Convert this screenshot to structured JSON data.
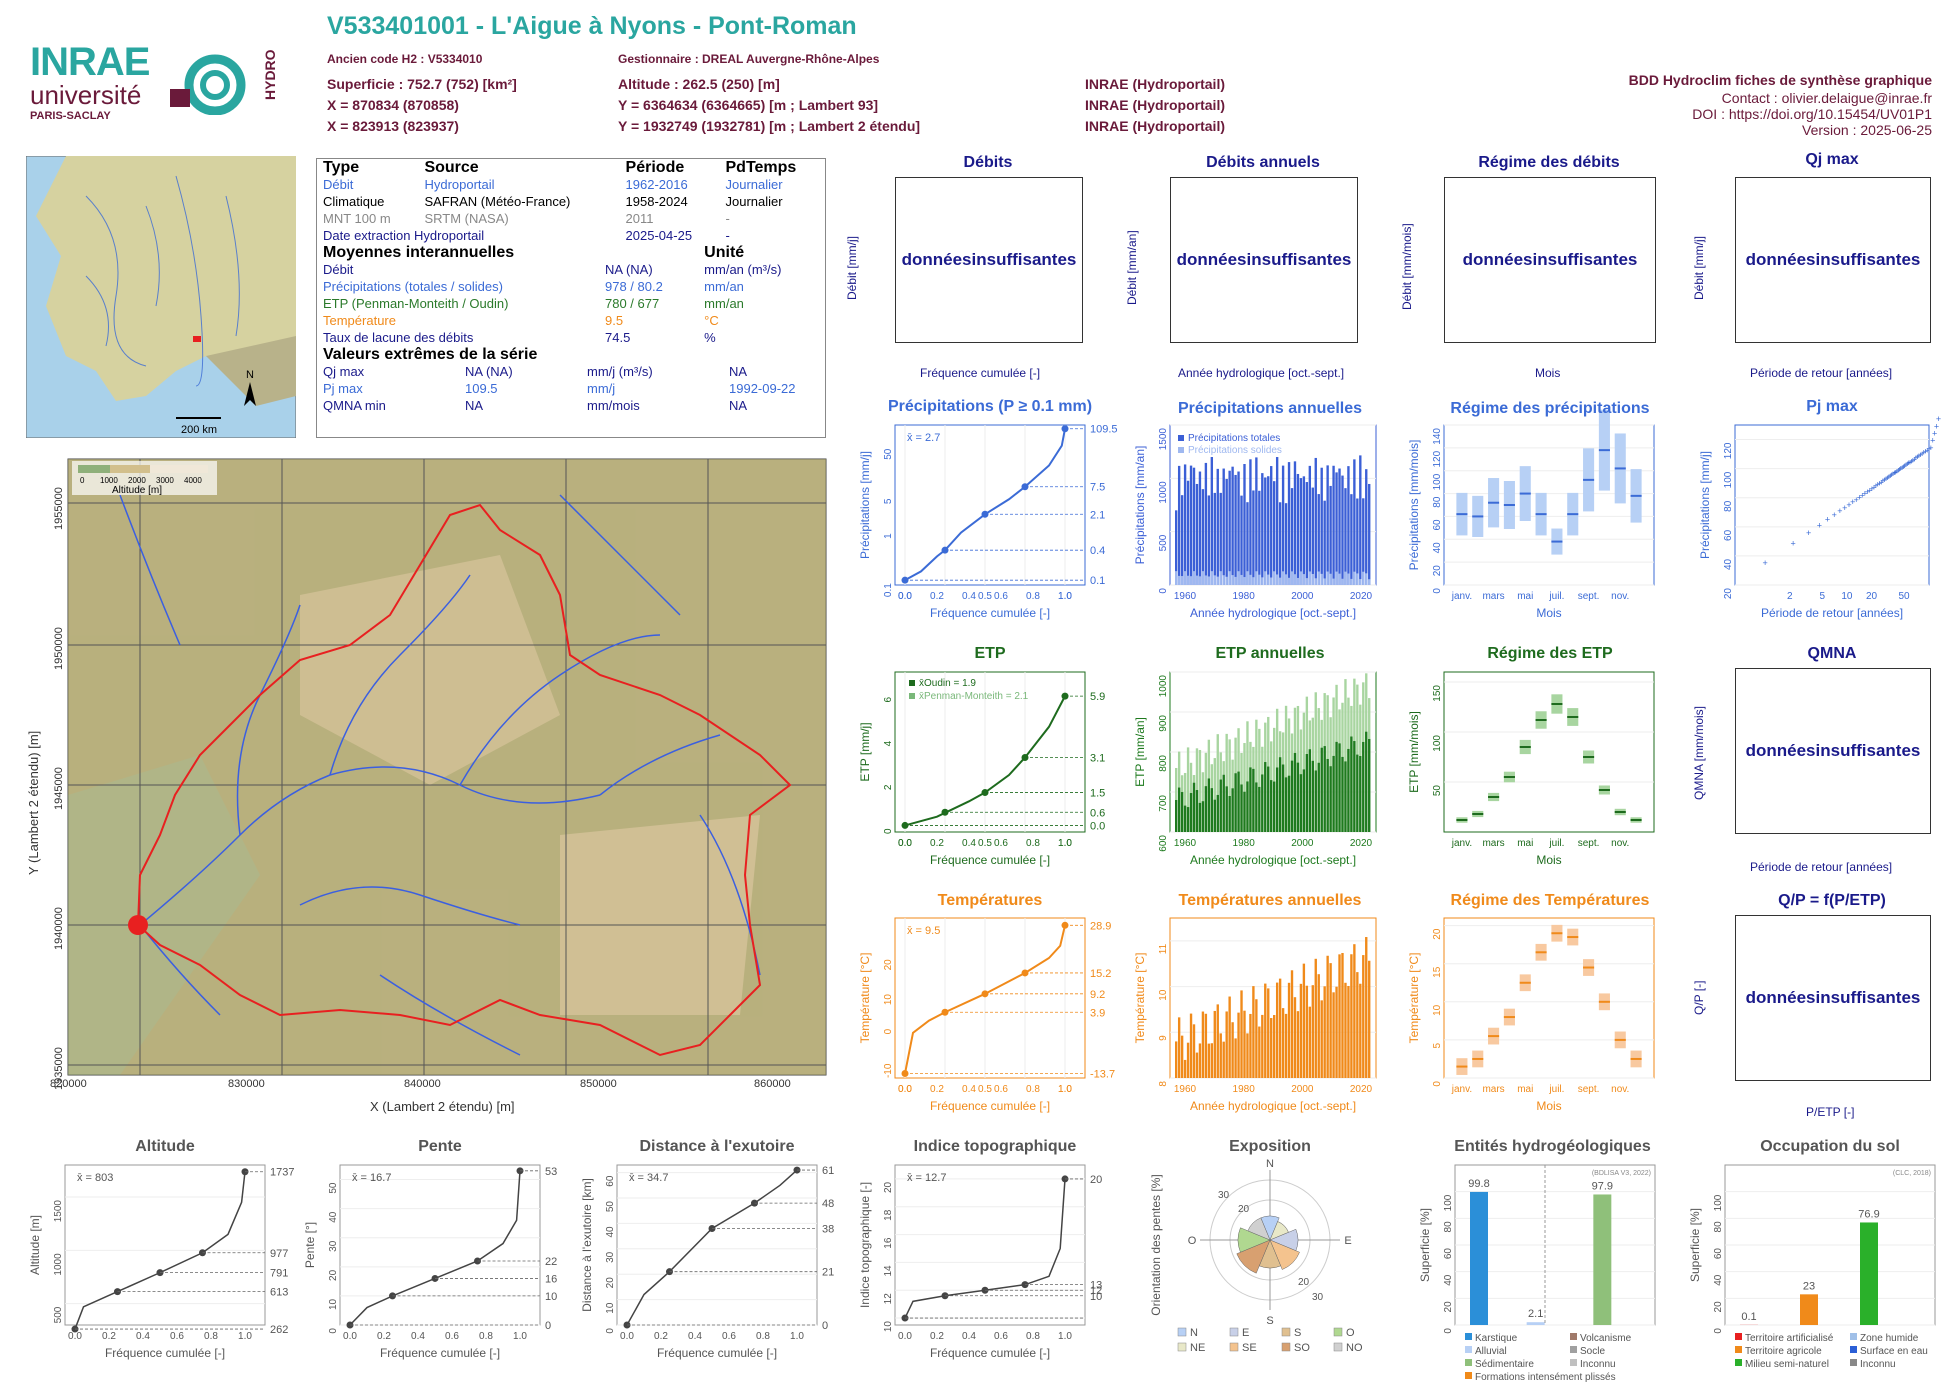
{
  "header": {
    "title": "V533401001 - L'Aigue à Nyons - Pont-Roman",
    "ancien_code": "Ancien code H2 : V5334010",
    "gestionnaire": "Gestionnaire : DREAL Auvergne-Rhône-Alpes",
    "superficie": "Superficie : 752.7 (752) [km²]",
    "altitude": "Altitude : 262.5 (250) [m]",
    "x93": "X = 870834 (870858)",
    "y93": "Y = 6364634 (6364665) [m ; Lambert 93]",
    "x2": "X = 823913 (823937)",
    "y2": "Y = 1932749 (1932781) [m ; Lambert 2 étendu]",
    "src1": "INRAE (Hydroportail)",
    "src2": "INRAE (Hydroportail)",
    "src3": "INRAE (Hydroportail)"
  },
  "logos": {
    "inrae": "INRAE",
    "univ": "université",
    "ps": "PARIS-SACLAY",
    "hydro": "HYDRO"
  },
  "meta": {
    "bdd": "BDD Hydroclim fiches de synthèse graphique",
    "contact": "Contact : olivier.delaigue@inrae.fr",
    "doi": "DOI : https://doi.org/10.15454/UV01P1",
    "version": "Version : 2025-06-25"
  },
  "info": {
    "cols": [
      "Type",
      "Source",
      "Période",
      "PdTemps"
    ],
    "rows": [
      [
        "Débit",
        "Hydroportail",
        "1962-2016",
        "Journalier"
      ],
      [
        "Climatique",
        "SAFRAN (Météo-France)",
        "1958-2024",
        "Journalier"
      ],
      [
        "MNT 100 m",
        "SRTM (NASA)",
        "2011",
        "-"
      ],
      [
        "Date extraction Hydroportail",
        "",
        "2025-04-25",
        "-"
      ]
    ],
    "moy_title": "Moyennes interannuelles",
    "unit_title": "Unité",
    "moy": [
      [
        "Débit",
        "NA (NA)",
        "mm/an (m³/s)"
      ],
      [
        "Précipitations (totales / solides)",
        "978 / 80.2",
        "mm/an"
      ],
      [
        "ETP (Penman-Monteith / Oudin)",
        "780 / 677",
        "mm/an"
      ],
      [
        "Température",
        "9.5",
        "°C"
      ],
      [
        "Taux de lacune des débits",
        "74.5",
        "%"
      ]
    ],
    "ext_title": "Valeurs extrêmes de la série",
    "ext": [
      [
        "Qj max",
        "NA (NA)",
        "mm/j (m³/s)",
        "NA"
      ],
      [
        "Pj max",
        "109.5",
        "mm/j",
        "1992-09-22"
      ],
      [
        "QMNA min",
        "NA",
        "mm/mois",
        "NA"
      ]
    ]
  },
  "minimap": {
    "scale": "200 km",
    "north": "N"
  },
  "map": {
    "xlabel": "X (Lambert 2 étendu) [m]",
    "ylabel": "Y (Lambert 2 étendu) [m]",
    "xticks": [
      "820000",
      "830000",
      "840000",
      "850000",
      "860000"
    ],
    "yticks": [
      "1955000",
      "1950000",
      "1945000",
      "1940000",
      "1935000",
      "1930000",
      "1925000"
    ],
    "legend_title": "Altitude [m]",
    "legend_ticks": [
      "0",
      "1000",
      "2000",
      "3000",
      "4000"
    ]
  },
  "placeholders": {
    "text1": "données",
    "text2": "insuffisantes"
  },
  "panels": {
    "debits": {
      "title": "Débits",
      "ylabel": "Débit [mm/j]",
      "xlabel": "Fréquence cumulée [-]"
    },
    "debits_an": {
      "title": "Débits annuels",
      "ylabel": "Débit [mm/an]",
      "xlabel": "Année hydrologique [oct.-sept.]"
    },
    "regime_deb": {
      "title": "Régime des débits",
      "ylabel": "Débit [mm/mois]",
      "xlabel": "Mois"
    },
    "qjmax": {
      "title": "Qj max",
      "ylabel": "Débit [mm/j]",
      "xlabel": "Période de retour [années]"
    },
    "precip": {
      "title": "Précipitations (P ≥ 0.1 mm)",
      "ylabel": "Précipitations [mm/j]",
      "xlabel": "Fréquence cumulée [-]",
      "mean": "x̄ = 2.7"
    },
    "precip_an": {
      "title": "Précipitations annuelles",
      "ylabel": "Précipitations [mm/an]",
      "xlabel": "Année hydrologique [oct.-sept.]",
      "leg1": "Précipitations totales",
      "leg2": "Précipitations solides"
    },
    "regime_p": {
      "title": "Régime des précipitations",
      "ylabel": "Précipitations [mm/mois]",
      "xlabel": "Mois"
    },
    "pjmax": {
      "title": "Pj max",
      "ylabel": "Précipitations [mm/j]",
      "xlabel": "Période de retour [années]"
    },
    "etp": {
      "title": "ETP",
      "ylabel": "ETP [mm/j]",
      "xlabel": "Fréquence cumulée [-]",
      "leg1": "x̄Oudin = 1.9",
      "leg2": "x̄Penman-Monteith = 2.1"
    },
    "etp_an": {
      "title": "ETP annuelles",
      "ylabel": "ETP [mm/an]",
      "xlabel": "Année hydrologique [oct.-sept.]"
    },
    "regime_etp": {
      "title": "Régime des ETP",
      "ylabel": "ETP [mm/mois]",
      "xlabel": "Mois"
    },
    "qmna": {
      "title": "QMNA",
      "ylabel": "QMNA [mm/mois]",
      "xlabel": "Période de retour [années]"
    },
    "temp": {
      "title": "Températures",
      "ylabel": "Température [°C]",
      "xlabel": "Fréquence cumulée [-]",
      "mean": "x̄ = 9.5"
    },
    "temp_an": {
      "title": "Températures annuelles",
      "ylabel": "Température [°C]",
      "xlabel": "Année hydrologique [oct.-sept.]"
    },
    "regime_t": {
      "title": "Régime des Températures",
      "ylabel": "Température [°C]",
      "xlabel": "Mois"
    },
    "qp": {
      "title": "Q/P = f(P/ETP)",
      "ylabel": "Q/P [-]",
      "xlabel": "P/ETP [-]"
    },
    "alt": {
      "title": "Altitude",
      "ylabel": "Altitude [m]",
      "xlabel": "Fréquence cumulée [-]",
      "mean": "x̄ = 803"
    },
    "pente": {
      "title": "Pente",
      "ylabel": "Pente [°]",
      "xlabel": "Fréquence cumulée [-]",
      "mean": "x̄ = 16.7"
    },
    "dist": {
      "title": "Distance à l'exutoire",
      "ylabel": "Distance à l'exutoire [km]",
      "xlabel": "Fréquence cumulée [-]",
      "mean": "x̄ = 34.7"
    },
    "topo": {
      "title": "Indice topographique",
      "ylabel": "Indice topographique [-]",
      "xlabel": "Fréquence cumulée [-]",
      "mean": "x̄ = 12.7"
    },
    "expo": {
      "title": "Exposition",
      "ylabel": "Orientation des pentes [%]"
    },
    "hydrogeo": {
      "title": "Entités hydrogéologiques",
      "ylabel": "Superficie [%]",
      "source": "(BDLISA V3, 2022)"
    },
    "occup": {
      "title": "Occupation du sol",
      "ylabel": "Superficie [%]",
      "source": "(CLC, 2018)"
    }
  },
  "month_labels": [
    "janv.",
    "mars",
    "mai",
    "juil.",
    "sept.",
    "nov."
  ],
  "chart_data": [
    {
      "type": "line",
      "title": "Précipitations (P ≥ 0.1 mm)",
      "x": [
        0,
        0.25,
        0.5,
        0.75,
        1.0
      ],
      "y": [
        0.1,
        0.4,
        2.1,
        7.5,
        109.5
      ],
      "ylog": true,
      "right_labels": [
        "109.5",
        "7.5",
        "2.1",
        "0.4",
        "0.1"
      ]
    },
    {
      "type": "bar",
      "title": "Précipitations annuelles",
      "x_range": [
        1958,
        2024
      ],
      "ylim": [
        0,
        1500
      ],
      "yticks": [
        "0",
        "500",
        "1000",
        "1500"
      ],
      "xticks": [
        "1960",
        "1980",
        "2000",
        "2020"
      ]
    },
    {
      "type": "box",
      "title": "Régime des précipitations",
      "ylim": [
        0,
        140
      ],
      "yticks": [
        "0",
        "20",
        "40",
        "60",
        "80",
        "100",
        "120",
        "140"
      ],
      "medians": [
        62,
        60,
        72,
        70,
        80,
        62,
        38,
        62,
        92,
        118,
        102,
        78
      ]
    },
    {
      "type": "scatter",
      "title": "Pj max",
      "ylim": [
        20,
        130
      ],
      "yticks": [
        "20",
        "40",
        "60",
        "80",
        "100",
        "120"
      ],
      "xticks": [
        "2",
        "5",
        "10",
        "20",
        "50"
      ]
    },
    {
      "type": "line",
      "title": "ETP",
      "x": [
        0,
        0.25,
        0.5,
        0.75,
        1.0
      ],
      "y": [
        0.0,
        0.6,
        1.5,
        3.1,
        5.9
      ],
      "right_labels": [
        "5.9",
        "3.1",
        "1.5",
        "0.6",
        "0.0"
      ],
      "yticks": [
        "0",
        "2",
        "4",
        "6"
      ]
    },
    {
      "type": "bar",
      "title": "ETP annuelles",
      "ylim": [
        600,
        1000
      ],
      "yticks": [
        "600",
        "700",
        "800",
        "900",
        "1000"
      ],
      "xticks": [
        "1960",
        "1980",
        "2000",
        "2020"
      ]
    },
    {
      "type": "box",
      "title": "Régime des ETP",
      "yticks": [
        "50",
        "100",
        "150"
      ],
      "ylim": [
        0,
        160
      ],
      "medians": [
        12,
        18,
        35,
        55,
        85,
        112,
        128,
        115,
        75,
        42,
        20,
        12
      ]
    },
    {
      "type": "line",
      "title": "Températures",
      "x": [
        0,
        0.25,
        0.5,
        0.75,
        1.0
      ],
      "y": [
        -13.7,
        3.9,
        9.2,
        15.2,
        28.9
      ],
      "right_labels": [
        "28.9",
        "15.2",
        "9.2",
        "3.9",
        "-13.7"
      ],
      "yticks": [
        "-10",
        "0",
        "10",
        "20"
      ]
    },
    {
      "type": "bar",
      "title": "Températures annuelles",
      "ylim": [
        8,
        11.5
      ],
      "yticks": [
        "8",
        "9",
        "10",
        "11"
      ],
      "xticks": [
        "1960",
        "1980",
        "2000",
        "2020"
      ]
    },
    {
      "type": "box",
      "title": "Régime des Températures",
      "yticks": [
        "0",
        "5",
        "10",
        "15",
        "20"
      ],
      "ylim": [
        0,
        21
      ],
      "medians": [
        1.5,
        2.5,
        5.5,
        8,
        12.5,
        16.5,
        19,
        18.5,
        14.5,
        10,
        5,
        2.5
      ]
    },
    {
      "type": "line",
      "title": "Altitude",
      "right_labels": [
        "1737",
        "977",
        "791",
        "613",
        "262"
      ],
      "yticks": [
        "500",
        "1000",
        "1500"
      ]
    },
    {
      "type": "line",
      "title": "Pente",
      "right_labels": [
        "53",
        "22",
        "16",
        "10",
        "0"
      ],
      "yticks": [
        "0",
        "10",
        "20",
        "30",
        "40",
        "50"
      ]
    },
    {
      "type": "line",
      "title": "Distance à l'exutoire",
      "right_labels": [
        "61",
        "48",
        "38",
        "21",
        "0"
      ],
      "yticks": [
        "0",
        "10",
        "20",
        "30",
        "40",
        "50",
        "60"
      ]
    },
    {
      "type": "line",
      "title": "Indice topographique",
      "right_labels": [
        "20",
        "13",
        "12",
        "10"
      ],
      "yticks": [
        "10",
        "12",
        "14",
        "16",
        "18",
        "20"
      ]
    },
    {
      "type": "pie",
      "title": "Exposition",
      "labels": [
        "N",
        "NE",
        "E",
        "SE",
        "S",
        "SO",
        "O",
        "NO"
      ],
      "rings": [
        "10",
        "20",
        "30"
      ],
      "dirs": [
        "N",
        "E",
        "S",
        "O"
      ]
    },
    {
      "type": "bar",
      "title": "Entités hydrogéologiques",
      "categories": [
        "Karstique",
        "Alluvial",
        "Sédimentaire"
      ],
      "values": [
        99.8,
        2.1,
        97.9
      ],
      "labels": [
        "99.8",
        "2.1",
        "97.9"
      ],
      "yticks": [
        "0",
        "20",
        "40",
        "60",
        "80",
        "100"
      ],
      "legend": [
        "Karstique",
        "Volcanisme",
        "Alluvial",
        "Socle",
        "Sédimentaire",
        "Inconnu",
        "Formations intensément plissés"
      ]
    },
    {
      "type": "bar",
      "title": "Occupation du sol",
      "categories": [
        "Territoire artificialisé",
        "Territoire agricole",
        "Milieu semi-naturel"
      ],
      "values": [
        0.1,
        23,
        76.9
      ],
      "labels": [
        "0.1",
        "23",
        "76.9"
      ],
      "yticks": [
        "0",
        "20",
        "40",
        "60",
        "80",
        "100"
      ],
      "legend": [
        "Territoire artificialisé",
        "Zone humide",
        "Territoire agricole",
        "Surface en eau",
        "Milieu semi-naturel",
        "Inconnu"
      ]
    }
  ]
}
